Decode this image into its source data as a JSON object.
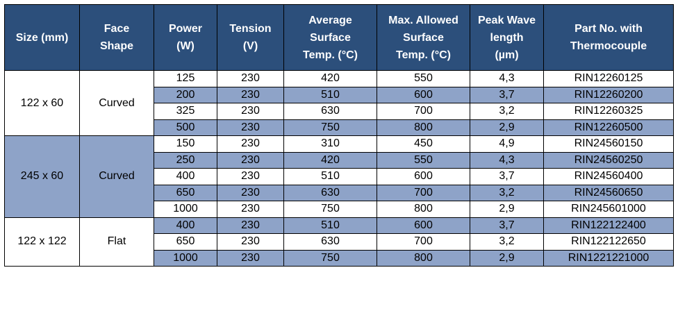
{
  "headers": [
    "Size (mm)",
    "Face\nShape",
    "Power\n(W)",
    "Tension\n(V)",
    "Average\nSurface\nTemp. (°C)",
    "Max. Allowed\nSurface\nTemp. (°C)",
    "Peak Wave\nlength\n(µm)",
    "Part No. with\nThermocouple"
  ],
  "groups": [
    {
      "size": "122 x 60",
      "shape": "Curved",
      "shade": "white",
      "rows": [
        {
          "power": "125",
          "tension": "230",
          "avg_temp": "420",
          "max_temp": "550",
          "wavelength": "4,3",
          "part_no": "RIN12260125"
        },
        {
          "power": "200",
          "tension": "230",
          "avg_temp": "510",
          "max_temp": "600",
          "wavelength": "3,7",
          "part_no": "RIN12260200"
        },
        {
          "power": "325",
          "tension": "230",
          "avg_temp": "630",
          "max_temp": "700",
          "wavelength": "3,2",
          "part_no": "RIN12260325"
        },
        {
          "power": "500",
          "tension": "230",
          "avg_temp": "750",
          "max_temp": "800",
          "wavelength": "2,9",
          "part_no": "RIN12260500"
        }
      ]
    },
    {
      "size": "245 x 60",
      "shape": "Curved",
      "shade": "blue",
      "rows": [
        {
          "power": "150",
          "tension": "230",
          "avg_temp": "310",
          "max_temp": "450",
          "wavelength": "4,9",
          "part_no": "RIN24560150"
        },
        {
          "power": "250",
          "tension": "230",
          "avg_temp": "420",
          "max_temp": "550",
          "wavelength": "4,3",
          "part_no": "RIN24560250"
        },
        {
          "power": "400",
          "tension": "230",
          "avg_temp": "510",
          "max_temp": "600",
          "wavelength": "3,7",
          "part_no": "RIN24560400"
        },
        {
          "power": "650",
          "tension": "230",
          "avg_temp": "630",
          "max_temp": "700",
          "wavelength": "3,2",
          "part_no": "RIN24560650"
        },
        {
          "power": "1000",
          "tension": "230",
          "avg_temp": "750",
          "max_temp": "800",
          "wavelength": "2,9",
          "part_no": "RIN245601000"
        }
      ]
    },
    {
      "size": "122 x 122",
      "shape": "Flat",
      "shade": "white",
      "rows": [
        {
          "power": "400",
          "tension": "230",
          "avg_temp": "510",
          "max_temp": "600",
          "wavelength": "3,7",
          "part_no": "RIN122122400"
        },
        {
          "power": "650",
          "tension": "230",
          "avg_temp": "630",
          "max_temp": "700",
          "wavelength": "3,2",
          "part_no": "RIN122122650"
        },
        {
          "power": "1000",
          "tension": "230",
          "avg_temp": "750",
          "max_temp": "800",
          "wavelength": "2,9",
          "part_no": "RIN1221221000"
        }
      ]
    }
  ],
  "colors": {
    "header_bg": "#2c4f7b",
    "header_text": "#ffffff",
    "row_blue": "#8ea3c8",
    "row_white": "#ffffff",
    "border": "#000000"
  }
}
